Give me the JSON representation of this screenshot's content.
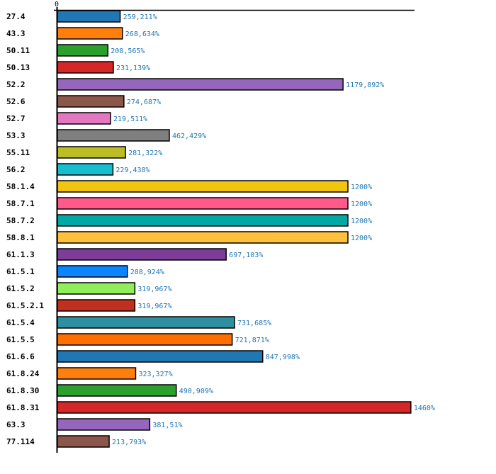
{
  "chart_data": {
    "type": "bar",
    "orientation": "horizontal",
    "title": "",
    "xlabel": "",
    "ylabel": "",
    "x_ticks": [
      "0"
    ],
    "xlim": [
      0,
      1500
    ],
    "grid": false,
    "legend": "none",
    "value_suffix": "%",
    "decimal_separator": ",",
    "categories": [
      "27.4",
      "43.3",
      "50.11",
      "50.13",
      "52.2",
      "52.6",
      "52.7",
      "53.3",
      "55.11",
      "56.2",
      "58.1.4",
      "58.7.1",
      "58.7.2",
      "58.8.1",
      "61.1.3",
      "61.5.1",
      "61.5.2",
      "61.5.2.1",
      "61.5.4",
      "61.5.5",
      "61.6.6",
      "61.8.24",
      "61.8.30",
      "61.8.31",
      "63.3",
      "77.114"
    ],
    "values": [
      259.211,
      268.634,
      208.565,
      231.139,
      1179.892,
      274.687,
      219.511,
      462.429,
      281.322,
      229.438,
      1200,
      1200,
      1200,
      1200,
      697.103,
      288.924,
      319.967,
      319.967,
      731.685,
      721.871,
      847.998,
      323.327,
      490.909,
      1460,
      381.51,
      213.793
    ],
    "value_labels": [
      "259,211%",
      "268,634%",
      "208,565%",
      "231,139%",
      "1179,892%",
      "274,687%",
      "219,511%",
      "462,429%",
      "281,322%",
      "229,438%",
      "1200%",
      "1200%",
      "1200%",
      "1200%",
      "697,103%",
      "288,924%",
      "319,967%",
      "319,967%",
      "731,685%",
      "721,871%",
      "847,998%",
      "323,327%",
      "490,909%",
      "1460%",
      "381,51%",
      "213,793%"
    ],
    "colors": [
      "#1f77b4",
      "#ff7f0e",
      "#2ca02c",
      "#d62728",
      "#9467bd",
      "#8c564b",
      "#e377c2",
      "#7f7f7f",
      "#bcbd22",
      "#17becf",
      "#f1c40f",
      "#ff5a8a",
      "#00a9a5",
      "#ffc13b",
      "#7d3c98",
      "#0a84ff",
      "#90ee5a",
      "#c0301e",
      "#2e8fa0",
      "#ff6f00",
      "#1f77b4",
      "#ff7f0e",
      "#2ca02c",
      "#d62728",
      "#9467bd",
      "#8c564b"
    ]
  }
}
